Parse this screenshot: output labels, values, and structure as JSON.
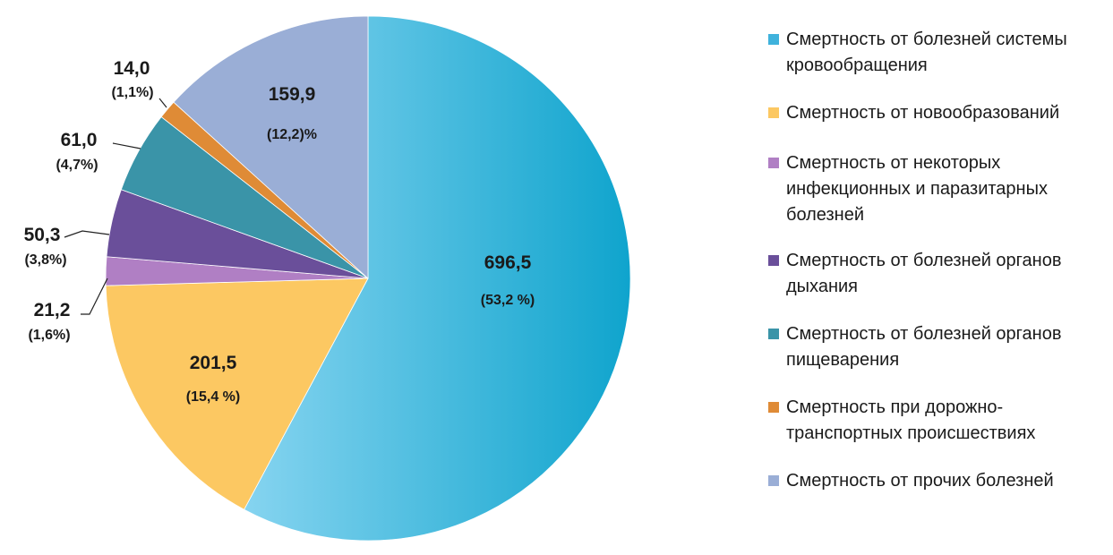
{
  "chart_data": {
    "type": "pie",
    "start_angle_deg": 0,
    "direction": "clockwise",
    "slices": [
      {
        "value": 696.5,
        "value_label": "696,5",
        "percent_label": "(53,2 %)",
        "color": "#3fb2dc",
        "label_placement": "inside"
      },
      {
        "value": 201.5,
        "value_label": "201,5",
        "percent_label": "(15,4 %)",
        "color": "#fcc862",
        "label_placement": "inside"
      },
      {
        "value": 21.2,
        "value_label": "21,2",
        "percent_label": "(1,6%)",
        "color": "#b07fc4",
        "label_placement": "outside"
      },
      {
        "value": 50.3,
        "value_label": "50,3",
        "percent_label": "(3,8%)",
        "color": "#6a4f9a",
        "label_placement": "outside"
      },
      {
        "value": 61.0,
        "value_label": "61,0",
        "percent_label": "(4,7%)",
        "color": "#3a94a8",
        "label_placement": "outside"
      },
      {
        "value": 14.0,
        "value_label": "14,0",
        "percent_label": "(1,1%)",
        "color": "#df8b36",
        "label_placement": "outside"
      },
      {
        "value": 159.9,
        "value_label": "159,9",
        "percent_label": "(12,2)%",
        "color": "#9aaed6",
        "label_placement": "inside"
      }
    ],
    "legend": {
      "placement": "right",
      "entries": [
        {
          "label": "Смертность от болезней системы кровообращения",
          "color": "#3fb2dc"
        },
        {
          "label": "Смертность от новообразований",
          "color": "#fcc862"
        },
        {
          "label": "Смертность от некоторых инфекционных и паразитарных болезней",
          "color": "#b07fc4"
        },
        {
          "label": "Смертность от болезней органов дыхания",
          "color": "#6a4f9a"
        },
        {
          "label": "Смертность от болезней органов пищеварения",
          "color": "#3a94a8"
        },
        {
          "label": "Смертность при дорожно-транспортных происшествиях",
          "color": "#df8b36"
        },
        {
          "label": "Смертность от прочих болезней",
          "color": "#9aaed6"
        }
      ]
    }
  }
}
